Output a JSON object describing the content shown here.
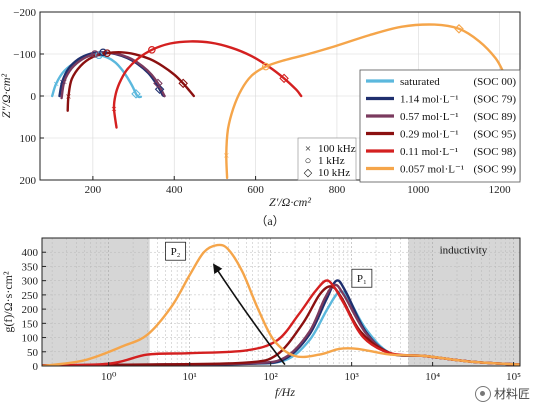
{
  "chart_data": [
    {
      "type": "line",
      "panel_label": "（a）",
      "xlabel": "Z′/Ω·cm²",
      "ylabel": "Z″/Ω·cm²",
      "xlim": [
        70,
        1250
      ],
      "ylim": [
        200,
        -200
      ],
      "xticks": [
        "200",
        "400",
        "600",
        "800",
        "1000",
        "1200"
      ],
      "yticks": [
        "−200",
        "−100",
        "0",
        "100",
        "200"
      ],
      "marker_legend": [
        {
          "symbol": "×",
          "label": "100 kHz"
        },
        {
          "symbol": "○",
          "label": "1 kHz"
        },
        {
          "symbol": "◇",
          "label": "10 kHz"
        }
      ],
      "series": [
        {
          "name": "saturated",
          "soc": "(SOC 00)",
          "color": "#5bb8dd",
          "x": [
            100,
            110,
            130,
            160,
            190,
            215,
            235,
            255,
            272,
            286,
            298,
            306,
            312,
            318
          ],
          "y": [
            0,
            -30,
            -60,
            -82,
            -95,
            -97,
            -92,
            -80,
            -62,
            -42,
            -22,
            -5,
            2,
            2
          ]
        },
        {
          "name": "1.14 mol·L⁻¹",
          "soc": "(SOC 79)",
          "color": "#1f2f6e",
          "x": [
            118,
            125,
            140,
            165,
            195,
            225,
            255,
            285,
            312,
            336,
            352,
            364,
            372,
            376
          ],
          "y": [
            0,
            -35,
            -65,
            -88,
            -101,
            -104,
            -100,
            -90,
            -75,
            -55,
            -35,
            -16,
            -2,
            0
          ]
        },
        {
          "name": "0.57 mol·L⁻¹",
          "soc": "(SOC 89)",
          "color": "#7a3a5e",
          "x": [
            123,
            130,
            148,
            175,
            205,
            235,
            265,
            295,
            322,
            345,
            360,
            370,
            376
          ],
          "y": [
            5,
            -35,
            -66,
            -88,
            -100,
            -103,
            -99,
            -88,
            -71,
            -50,
            -30,
            -12,
            0
          ]
        },
        {
          "name": "0.29 mol·L⁻¹",
          "soc": "(SOC 95)",
          "color": "#8b1010",
          "x": [
            138,
            140,
            148,
            170,
            200,
            235,
            270,
            305,
            340,
            372,
            400,
            422,
            438,
            448
          ],
          "y": [
            35,
            0,
            -40,
            -72,
            -93,
            -102,
            -104,
            -99,
            -88,
            -71,
            -51,
            -30,
            -12,
            0
          ]
        },
        {
          "name": "0.11 mol·L⁻¹",
          "soc": "(SOC 98)",
          "color": "#d42020",
          "x": [
            258,
            252,
            255,
            265,
            282,
            310,
            345,
            390,
            440,
            490,
            540,
            590,
            635,
            670,
            700,
            712
          ],
          "y": [
            75,
            30,
            0,
            -30,
            -60,
            -88,
            -110,
            -125,
            -130,
            -127,
            -115,
            -95,
            -68,
            -42,
            -15,
            0
          ]
        },
        {
          "name": "0.057 mol·L⁻¹",
          "soc": "(SOC 99)",
          "color": "#f5a54a",
          "x": [
            530,
            528,
            532,
            545,
            565,
            590,
            625,
            670,
            730,
            800,
            880,
            960,
            1040,
            1100,
            1150,
            1190,
            1210
          ],
          "y": [
            195,
            140,
            80,
            30,
            -15,
            -48,
            -70,
            -85,
            -100,
            -120,
            -145,
            -165,
            -170,
            -160,
            -130,
            -90,
            -55
          ]
        }
      ]
    },
    {
      "type": "line",
      "panel_label": "",
      "xlabel": "f/Hz",
      "ylabel": "g(f)/Ω·s·cm²",
      "xscale": "log",
      "xlim": [
        0.15,
        120000
      ],
      "ylim": [
        0,
        450
      ],
      "xticks": [
        "10⁰",
        "10¹",
        "10²",
        "10³",
        "10⁴",
        "10⁵"
      ],
      "yticks": [
        "0",
        "50",
        "100",
        "150",
        "200",
        "250",
        "300",
        "350",
        "400"
      ],
      "annotations": [
        "P₂",
        "P₁",
        "inductivity"
      ],
      "shaded_bands": [
        [
          0.15,
          3.2
        ],
        [
          5000,
          120000
        ]
      ],
      "series": [
        {
          "name": "saturated",
          "color": "#5bb8dd",
          "x": [
            0.15,
            5,
            50,
            150,
            300,
            500,
            700,
            900,
            1500,
            3000,
            8000,
            30000,
            120000
          ],
          "y": [
            2,
            5,
            8,
            20,
            90,
            200,
            260,
            240,
            130,
            45,
            35,
            15,
            5
          ]
        },
        {
          "name": "1.14 mol·L⁻¹",
          "color": "#1f2f6e",
          "x": [
            0.15,
            5,
            60,
            150,
            300,
            480,
            650,
            850,
            1500,
            3000,
            8000,
            30000,
            120000
          ],
          "y": [
            2,
            5,
            8,
            25,
            110,
            230,
            300,
            260,
            120,
            45,
            35,
            15,
            5
          ]
        },
        {
          "name": "0.57 mol·L⁻¹",
          "color": "#7a3a5e",
          "x": [
            0.15,
            5,
            60,
            150,
            300,
            470,
            620,
            800,
            1500,
            3000,
            8000,
            30000,
            120000
          ],
          "y": [
            2,
            5,
            10,
            30,
            120,
            240,
            285,
            250,
            115,
            45,
            35,
            15,
            5
          ]
        },
        {
          "name": "0.29 mol·L⁻¹",
          "color": "#8b1010",
          "x": [
            0.15,
            5,
            50,
            120,
            250,
            400,
            560,
            750,
            1300,
            3000,
            8000,
            30000,
            120000
          ],
          "y": [
            2,
            6,
            12,
            40,
            150,
            250,
            280,
            240,
            120,
            45,
            35,
            15,
            5
          ]
        },
        {
          "name": "0.11 mol·L⁻¹",
          "color": "#d42020",
          "x": [
            0.15,
            1,
            3,
            10,
            50,
            120,
            220,
            350,
            480,
            600,
            800,
            1400,
            3000,
            8000,
            30000,
            120000
          ],
          "y": [
            2,
            8,
            40,
            45,
            55,
            90,
            180,
            260,
            300,
            280,
            220,
            100,
            45,
            35,
            15,
            5
          ]
        },
        {
          "name": "0.057 mol·L⁻¹",
          "color": "#f5a54a",
          "x": [
            0.15,
            0.5,
            1.5,
            3,
            6,
            10,
            15,
            22,
            30,
            45,
            70,
            110,
            200,
            400,
            700,
            1200,
            3000,
            8000,
            30000,
            120000
          ],
          "y": [
            0,
            20,
            70,
            110,
            210,
            320,
            400,
            425,
            410,
            330,
            200,
            90,
            35,
            40,
            60,
            60,
            40,
            35,
            15,
            5
          ]
        }
      ]
    }
  ]
}
